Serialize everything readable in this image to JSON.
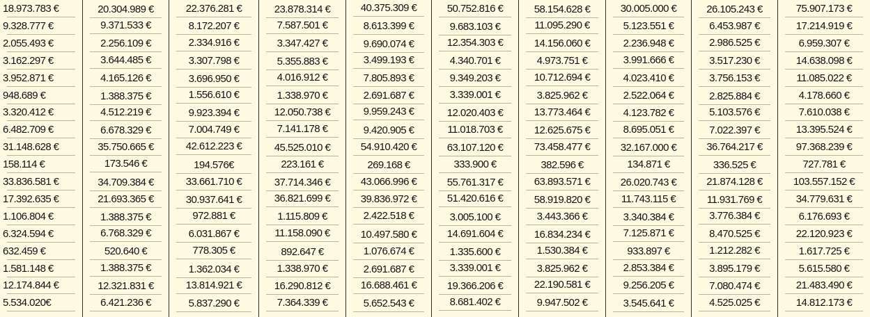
{
  "table": {
    "columns": [
      {
        "cells": [
          "18.973.783 €",
          "9.328.777 €",
          "2.055.493 €",
          "3.162.297 €",
          "3.952.871 €",
          "948.689 €",
          "3.320.412 €",
          "6.482.709 €",
          "31.148.628 €",
          "158.114 €",
          "33.836.581 €",
          "17.392.635 €",
          "1.106.804 €",
          "6.324.594 €",
          "632.459 €",
          "1.581.148 €",
          "12.174.844 €",
          "5.534.020€"
        ]
      },
      {
        "cells": [
          "20.304.989 €",
          "9.371.533 €",
          "2.256.109 €",
          "3.644.485 €",
          "4.165.126 €",
          "1.388.375 €",
          "4.512.219 €",
          "6.678.329 €",
          "35.750.665 €",
          "173.546 €",
          "34.709.384 €",
          "21.693.365 €",
          "1.388.375 €",
          "6.768.329 €",
          "520.640 €",
          "1.388.375 €",
          "12.321.831 €",
          "6.421.236 €"
        ]
      },
      {
        "cells": [
          "22.376.281 €",
          "8.172.207 €",
          "2.334.916 €",
          "3.307.798 €",
          "3.696.950 €",
          "1.556.610 €",
          "9.923.394 €",
          "7.004.749 €",
          "42.612.223 €",
          "194.576€",
          "33.661.710 €",
          "30.937.641 €",
          "972.881 €",
          "6.031.867 €",
          "778.305 €",
          "1.362.034 €",
          "13.814.921 €",
          "5.837.290 €"
        ]
      },
      {
        "cells": [
          "23.878.314 €",
          "7.587.501 €",
          "3.347.427 €",
          "5.355.883 €",
          "4.016.912 €",
          "1.338.970 €",
          "12.050.738 €",
          "7.141.178 €",
          "45.525.010 €",
          "223.161 €",
          "37.714.346 €",
          "36.821.699 €",
          "1.115.809 €",
          "11.158.090 €",
          "892.647 €",
          "1.338.970 €",
          "16.290.812 €",
          "7.364.339 €"
        ]
      },
      {
        "cells": [
          "40.375.309 €",
          "8.613.399 €",
          "9.690.074 €",
          "3.499.193 €",
          "7.805.893 €",
          "2.691.687 €",
          "9.959.243 €",
          "9.420.905 €",
          "54.910.420 €",
          "269.168 €",
          "43.066.996 €",
          "39.836.972 €",
          "2.422.518 €",
          "10.497.580 €",
          "1.076.674 €",
          "2.691.687 €",
          "16.688.461 €",
          "5.652.543 €"
        ]
      },
      {
        "cells": [
          "50.752.816 €",
          "9.683.103 €",
          "12.354.303 €",
          "4.340.701 €",
          "9.349.203 €",
          "3.339.001 €",
          "12.020.403 €",
          "11.018.703 €",
          "63.107.120 €",
          "333.900 €",
          "55.761.317 €",
          "51.420.616 €",
          "3.005.100 €",
          "14.691.604 €",
          "1.335.600 €",
          "3.339.001 €",
          "19.366.206 €",
          "8.681.402 €"
        ]
      },
      {
        "cells": [
          "58.154.628 €",
          "11.095.290 €",
          "14.156.060 €",
          "4.973.751 €",
          "10.712.694 €",
          "3.825.962 €",
          "13.773.464 €",
          "12.625.675 €",
          "73.458.477 €",
          "382.596 €",
          "63.893.571 €",
          "58.919.820 €",
          "3.443.366 €",
          "16.834.234 €",
          "1.530.384 €",
          "3.825.962 €",
          "22.190.581 €",
          "9.947.502 €"
        ]
      },
      {
        "cells": [
          "30.005.000 €",
          "5.123.551 €",
          "2.236.948 €",
          "3.991.666 €",
          "4.023.410 €",
          "2.522.064 €",
          "4.123.782 €",
          "8.695.051 €",
          "32.167.000 €",
          "134.871 €",
          "26.020.743 €",
          "11.743.115 €",
          "3.340.384 €",
          "7.125.871 €",
          "933.897 €",
          "2.853.384 €",
          "9.256.205 €",
          "3.545.641 €"
        ]
      },
      {
        "cells": [
          "26.105.243 €",
          "6.453.987 €",
          "2.986.525 €",
          "3.517.230 €",
          "3.756.153 €",
          "2.825.884 €",
          "5.103.576 €",
          "7.022.397 €",
          "36.764.217 €",
          "336.525 €",
          "21.874.128 €",
          "11.931.769 €",
          "3.776.384 €",
          "8.470.525 €",
          "1.212.282 €",
          "3.895.179 €",
          "7.080.474 €",
          "4.525.025 €"
        ]
      },
      {
        "cells": [
          "75.907.173 €",
          "17.214.919 €",
          "6.959.307 €",
          "14.638.098 €",
          "11.085.022 €",
          "4.178.660 €",
          "7.610.038 €",
          "13.395.524 €",
          "97.368.239 €",
          "727.781 €",
          "103.557.152 €",
          "34.779.631 €",
          "6.176.693 €",
          "22.120.923 €",
          "1.617.725 €",
          "5.615.580 €",
          "21.483.490 €",
          "14.812.173 €"
        ]
      }
    ]
  }
}
